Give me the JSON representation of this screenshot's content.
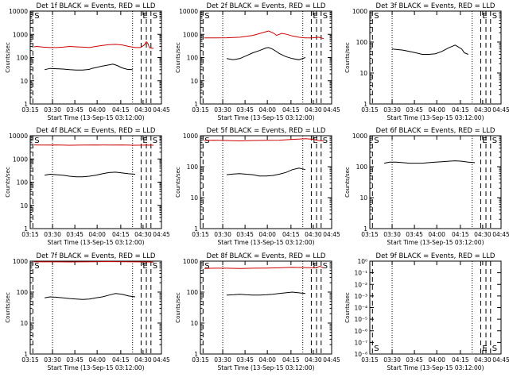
{
  "colors": {
    "events": "#000000",
    "lld": "#cc0000",
    "axes": "#000000"
  },
  "chart_data": [
    {
      "type": "line",
      "title": "Det 1f BLACK = Events, RED = LLD",
      "xlabel": "Start Time (13-Sep-15 03:12:00)",
      "ylabel": "Counts/sec",
      "x_ticks": [
        "03:15",
        "03:30",
        "03:45",
        "04:00",
        "04:15",
        "04:30",
        "04:45"
      ],
      "y_scale": "log",
      "y_ticks": [
        "1",
        "10",
        "100",
        "1000",
        "10000"
      ],
      "ylim": [
        1,
        10000
      ],
      "xlim_min": [
        3,
        47
      ],
      "marker_labels": [
        "S",
        "E",
        "S"
      ],
      "series": [
        {
          "name": "Events",
          "color": "#000000",
          "x": [
            11,
            15,
            20,
            25,
            30,
            35,
            40,
            43,
            45,
            47,
            50,
            55,
            60,
            63,
            66,
            70,
            74,
            78
          ],
          "y": [
            30,
            34,
            33,
            32,
            30,
            29,
            29,
            30,
            31,
            34,
            37,
            43,
            48,
            52,
            46,
            36,
            31,
            30
          ]
        },
        {
          "name": "LLD",
          "color": "#cc0000",
          "x": [
            3,
            5,
            10,
            15,
            20,
            25,
            30,
            35,
            40,
            45,
            50,
            55,
            60,
            65,
            70,
            75,
            80,
            84,
            87,
            88.5,
            89.5,
            91,
            94
          ],
          "y": [
            290,
            300,
            280,
            270,
            270,
            280,
            300,
            290,
            280,
            270,
            300,
            330,
            360,
            370,
            350,
            300,
            270,
            270,
            350,
            480,
            420,
            260,
            250
          ]
        }
      ]
    },
    {
      "type": "line",
      "title": "Det 2f BLACK = Events, RED = LLD",
      "xlabel": "Start Time (13-Sep-15 03:12:00)",
      "ylabel": "Counts/sec",
      "x_ticks": [
        "03:15",
        "03:30",
        "03:45",
        "04:00",
        "04:15",
        "04:30",
        "04:45"
      ],
      "y_scale": "log",
      "y_ticks": [
        "1",
        "10",
        "100",
        "1000",
        "10000"
      ],
      "ylim": [
        1,
        10000
      ],
      "marker_labels": [
        "S",
        "E",
        "S"
      ],
      "series": [
        {
          "name": "Events",
          "color": "#000000",
          "x": [
            20,
            25,
            30,
            35,
            40,
            45,
            50,
            52,
            55,
            58,
            60,
            65,
            70,
            75,
            80
          ],
          "y": [
            90,
            80,
            90,
            120,
            160,
            200,
            260,
            270,
            230,
            180,
            150,
            110,
            90,
            80,
            100
          ]
        },
        {
          "name": "LLD",
          "color": "#cc0000",
          "x": [
            3,
            10,
            20,
            30,
            40,
            48,
            52,
            56,
            58,
            62,
            66,
            70,
            75,
            80,
            85,
            90,
            94
          ],
          "y": [
            700,
            700,
            710,
            750,
            900,
            1200,
            1400,
            1100,
            900,
            1100,
            1000,
            850,
            750,
            700,
            700,
            750,
            650
          ]
        }
      ]
    },
    {
      "type": "line",
      "title": "Det 3f BLACK = Events, RED = LLD",
      "xlabel": "Start Time (13-Sep-15 03:12:00)",
      "ylabel": "Counts/sec",
      "x_ticks": [
        "03:15",
        "03:30",
        "03:45",
        "04:00",
        "04:15",
        "04:30",
        "04:45"
      ],
      "y_scale": "log",
      "y_ticks": [
        "1",
        "10",
        "100",
        "1000"
      ],
      "ylim": [
        1,
        1000
      ],
      "marker_labels": [
        "S",
        "E",
        "S"
      ],
      "series": [
        {
          "name": "Events",
          "color": "#000000",
          "x": [
            17,
            20,
            25,
            30,
            35,
            40,
            45,
            50,
            55,
            60,
            65,
            70,
            72,
            75
          ],
          "y": [
            60,
            58,
            55,
            50,
            45,
            40,
            40,
            42,
            50,
            65,
            80,
            60,
            45,
            40
          ]
        }
      ]
    },
    {
      "type": "line",
      "title": "Det 4f BLACK = Events, RED = LLD",
      "xlabel": "Start Time (13-Sep-15 03:12:00)",
      "ylabel": "Counts/sec",
      "x_ticks": [
        "03:15",
        "03:30",
        "03:45",
        "04:00",
        "04:15",
        "04:30",
        "04:45"
      ],
      "y_scale": "log",
      "y_ticks": [
        "1",
        "10",
        "100",
        "1000",
        "10000"
      ],
      "ylim": [
        1,
        10000
      ],
      "marker_labels": [
        "S",
        "E",
        "S"
      ],
      "series": [
        {
          "name": "Events",
          "color": "#000000",
          "x": [
            11,
            15,
            20,
            25,
            30,
            35,
            40,
            45,
            50,
            55,
            60,
            65,
            70,
            75,
            80
          ],
          "y": [
            200,
            220,
            210,
            200,
            180,
            170,
            170,
            180,
            200,
            230,
            260,
            270,
            250,
            230,
            220
          ]
        },
        {
          "name": "LLD",
          "color": "#cc0000",
          "x": [
            3,
            10,
            20,
            30,
            40,
            50,
            60,
            70,
            80,
            90,
            94
          ],
          "y": [
            4000,
            3950,
            4000,
            3900,
            3950,
            4000,
            3950,
            4000,
            3900,
            3950,
            3900
          ]
        }
      ]
    },
    {
      "type": "line",
      "title": "Det 5f BLACK = Events, RED = LLD",
      "xlabel": "Start Time (13-Sep-15 03:12:00)",
      "ylabel": "Counts/sec",
      "x_ticks": [
        "03:15",
        "03:30",
        "03:45",
        "04:00",
        "04:15",
        "04:30",
        "04:45"
      ],
      "y_scale": "log",
      "y_ticks": [
        "1",
        "10",
        "100",
        "1000"
      ],
      "ylim": [
        1,
        1000
      ],
      "marker_labels": [
        "S",
        "E",
        "S"
      ],
      "series": [
        {
          "name": "Events",
          "color": "#000000",
          "x": [
            20,
            25,
            30,
            35,
            40,
            45,
            50,
            55,
            60,
            65,
            70,
            75,
            78,
            80
          ],
          "y": [
            55,
            58,
            60,
            57,
            55,
            50,
            50,
            52,
            57,
            65,
            80,
            90,
            85,
            80
          ]
        },
        {
          "name": "LLD",
          "color": "#cc0000",
          "x": [
            3,
            10,
            20,
            30,
            40,
            50,
            60,
            70,
            80,
            85,
            90,
            94
          ],
          "y": [
            700,
            720,
            700,
            680,
            700,
            710,
            720,
            760,
            800,
            770,
            700,
            680
          ]
        }
      ]
    },
    {
      "type": "line",
      "title": "Det 6f BLACK = Events, RED = LLD",
      "xlabel": "Start Time (13-Sep-15 03:12:00)",
      "ylabel": "Counts/sec",
      "x_ticks": [
        "03:15",
        "03:30",
        "03:45",
        "04:00",
        "04:15",
        "04:30",
        "04:45"
      ],
      "y_scale": "log",
      "y_ticks": [
        "1",
        "10",
        "100",
        "1000"
      ],
      "ylim": [
        1,
        1000
      ],
      "marker_labels": [
        "S",
        "E",
        "S"
      ],
      "series": [
        {
          "name": "Events",
          "color": "#000000",
          "x": [
            11,
            15,
            20,
            25,
            30,
            35,
            40,
            45,
            50,
            55,
            60,
            65,
            70,
            75,
            80
          ],
          "y": [
            130,
            140,
            140,
            135,
            130,
            130,
            130,
            135,
            140,
            145,
            150,
            155,
            150,
            140,
            135
          ]
        }
      ]
    },
    {
      "type": "line",
      "title": "Det 7f BLACK = Events, RED = LLD",
      "xlabel": "Start Time (13-Sep-15 03:12:00)",
      "ylabel": "Counts/sec",
      "x_ticks": [
        "03:15",
        "03:30",
        "03:45",
        "04:00",
        "04:15",
        "04:30",
        "04:45"
      ],
      "y_scale": "log",
      "y_ticks": [
        "1",
        "10",
        "100",
        "1000"
      ],
      "ylim": [
        1,
        1000
      ],
      "marker_labels": [
        "S",
        "E",
        "S"
      ],
      "series": [
        {
          "name": "Events",
          "color": "#000000",
          "x": [
            11,
            15,
            20,
            25,
            30,
            35,
            40,
            45,
            50,
            55,
            60,
            65,
            70,
            75,
            80
          ],
          "y": [
            65,
            70,
            68,
            65,
            62,
            60,
            58,
            60,
            65,
            70,
            80,
            90,
            85,
            75,
            70
          ]
        },
        {
          "name": "LLD",
          "color": "#cc0000",
          "x": [
            3,
            10,
            20,
            30,
            40,
            50,
            60,
            70,
            80,
            90,
            94
          ],
          "y": [
            950,
            960,
            950,
            940,
            950,
            960,
            970,
            960,
            950,
            940,
            930
          ]
        }
      ]
    },
    {
      "type": "line",
      "title": "Det 8f BLACK = Events, RED = LLD",
      "xlabel": "Start Time (13-Sep-15 03:12:00)",
      "ylabel": "Counts/sec",
      "x_ticks": [
        "03:15",
        "03:30",
        "03:45",
        "04:00",
        "04:15",
        "04:30",
        "04:45"
      ],
      "y_scale": "log",
      "y_ticks": [
        "1",
        "10",
        "100",
        "1000"
      ],
      "ylim": [
        1,
        1000
      ],
      "marker_labels": [
        "S",
        "E",
        "S"
      ],
      "series": [
        {
          "name": "Events",
          "color": "#000000",
          "x": [
            20,
            25,
            30,
            35,
            40,
            45,
            50,
            55,
            60,
            65,
            70,
            75,
            80
          ],
          "y": [
            80,
            82,
            85,
            82,
            80,
            80,
            82,
            85,
            90,
            95,
            100,
            95,
            90
          ]
        },
        {
          "name": "LLD",
          "color": "#cc0000",
          "x": [
            3,
            10,
            20,
            30,
            40,
            50,
            60,
            70,
            80,
            88,
            91,
            94
          ],
          "y": [
            580,
            590,
            590,
            580,
            590,
            600,
            610,
            630,
            620,
            610,
            680,
            600
          ]
        }
      ]
    },
    {
      "type": "line",
      "title": "Det 9f BLACK = Events, RED = LLD",
      "xlabel": "Start Time (13-Sep-15 03:12:00)",
      "ylabel": "Counts/sec",
      "x_ticks": [
        "03:15",
        "03:30",
        "03:45",
        "04:00",
        "04:15",
        "04:30",
        "04:45"
      ],
      "y_scale": "log",
      "y_ticks": [
        "10⁻⁸",
        "10⁻⁷",
        "10⁻⁶",
        "10⁻⁵",
        "10⁻⁴",
        "10⁻³",
        "10⁻²",
        "10⁻¹",
        "10⁰"
      ],
      "y_tick_exponents": [
        -8,
        -7,
        -6,
        -5,
        -4,
        -3,
        -2,
        -1,
        0
      ],
      "ylim": [
        1e-08,
        1
      ],
      "marker_labels": [
        "S",
        "E",
        "S"
      ],
      "series": []
    }
  ]
}
